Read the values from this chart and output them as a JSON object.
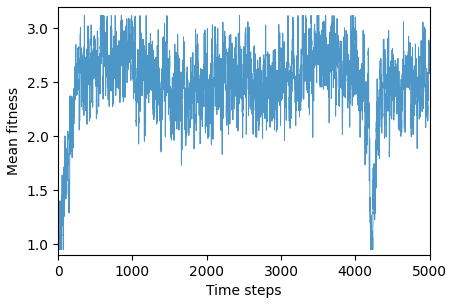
{
  "title": "",
  "xlabel": "Time steps",
  "ylabel": "Mean fitness",
  "xlim": [
    0,
    5000
  ],
  "ylim": [
    0.9,
    3.2
  ],
  "line_color": "#4c96c8",
  "linewidth": 0.7,
  "figsize": [
    4.54,
    3.05
  ],
  "dpi": 100,
  "xticks": [
    0,
    1000,
    2000,
    3000,
    4000,
    5000
  ],
  "yticks": [
    1.0,
    1.5,
    2.0,
    2.5,
    3.0
  ],
  "seed": 7
}
